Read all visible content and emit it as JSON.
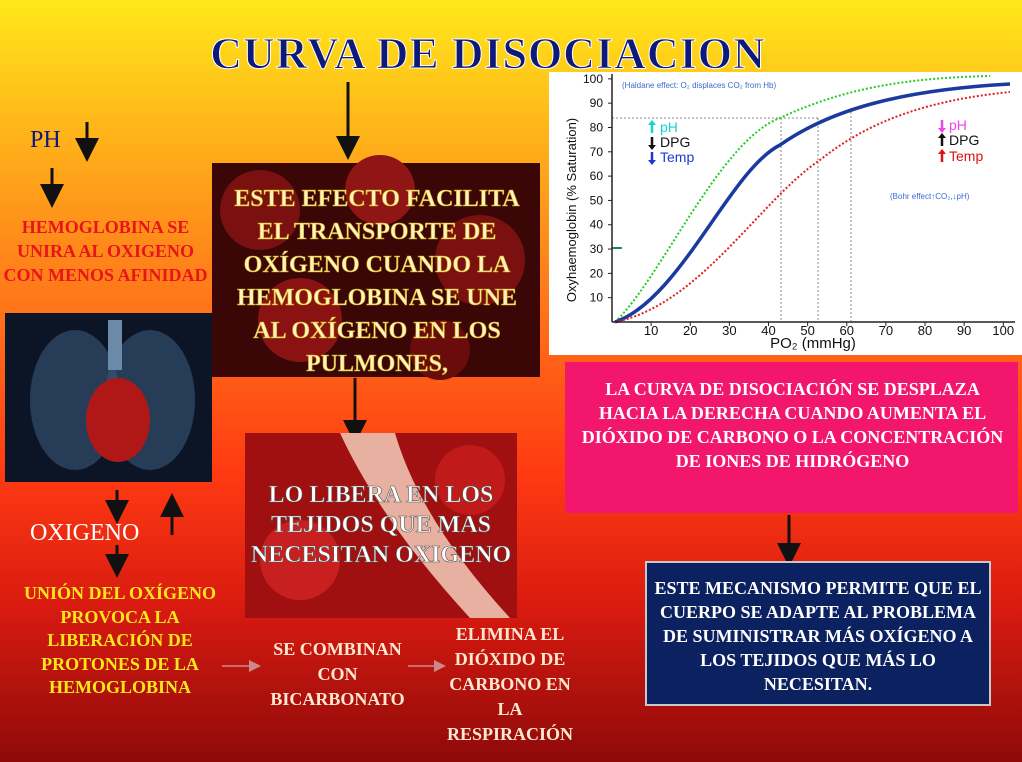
{
  "title": "CURVA DE DISOCIACION",
  "ph": "PH",
  "hemoglobina": "HEMOGLOBINA SE UNIRA AL OXIGENO CON MENOS AFINIDAD",
  "efecto": "ESTE EFECTO FACILITA EL TRANSPORTE DE OXÍGENO CUANDO LA HEMOGLOBINA SE UNE AL OXÍGENO EN LOS PULMONES,",
  "libera": "LO LIBERA EN LOS TEJIDOS QUE MAS NECESITAN OXIGENO",
  "oxigeno": "OXIGENO",
  "union": "UNIÓN DEL OXÍGENO PROVOCA LA LIBERACIÓN DE PROTONES DE LA HEMOGLOBINA",
  "combinan": "SE COMBINAN CON BICARBONATO",
  "elimina": "ELIMINA EL DIÓXIDO DE CARBONO EN LA RESPIRACIÓN",
  "curva_texto": "LA CURVA DE DISOCIACIÓN SE DESPLAZA HACIA LA DERECHA CUANDO AUMENTA EL DIÓXIDO DE CARBONO O LA CONCENTRACIÓN DE IONES DE HIDRÓGENO",
  "mecanismo": "ESTE MECANISMO PERMITE QUE EL CUERPO SE ADAPTE AL PROBLEMA DE SUMINISTRAR MÁS OXÍGENO A LOS TEJIDOS QUE MÁS LO NECESITAN.",
  "graph": {
    "y_label": "Oxyhaemoglobin (% Saturation)",
    "x_label": "PO₂ (mmHg)",
    "haldane": "(Haldane effect: O₂ displaces CO₂ from Hb)",
    "bohr": "(Bohr effect↑CO₂,↓pH)",
    "legend_left": [
      "pH",
      "DPG",
      "Temp"
    ],
    "legend_right": [
      "pH",
      "DPG",
      "Temp"
    ],
    "xlim": [
      0,
      103
    ],
    "ylim": [
      0,
      102
    ],
    "xticks": [
      10,
      20,
      30,
      40,
      50,
      60,
      70,
      80,
      90,
      100
    ],
    "yticks": [
      10,
      20,
      30,
      40,
      50,
      60,
      70,
      80,
      90,
      100
    ]
  }
}
